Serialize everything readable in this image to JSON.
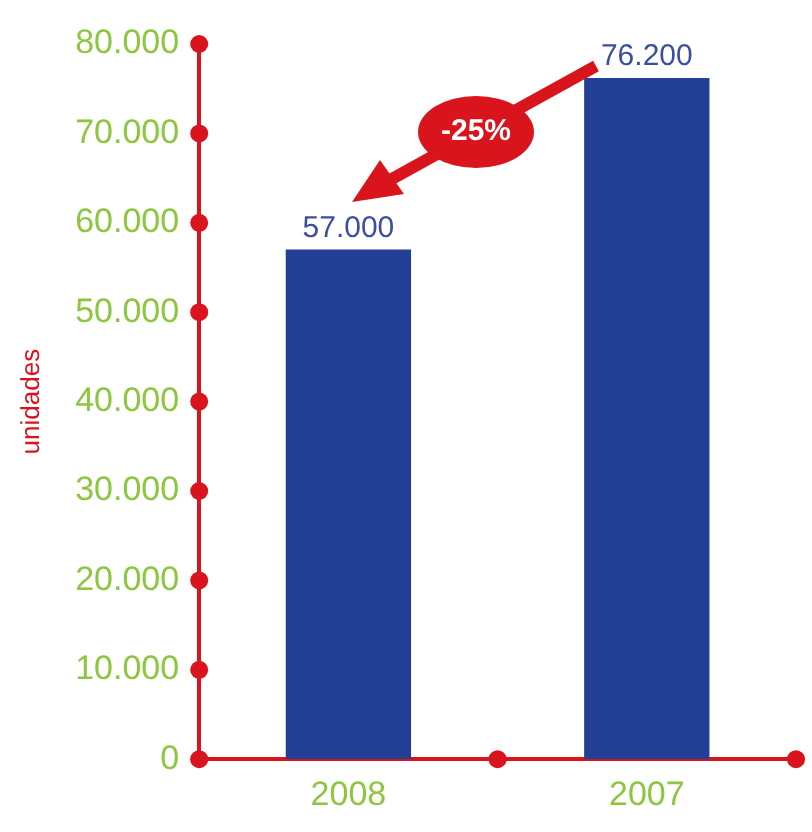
{
  "chart_data": {
    "type": "bar",
    "ylabel": "unidades",
    "categories": [
      "2008",
      "2007"
    ],
    "values": [
      57000,
      76200
    ],
    "color": "#233f95",
    "value_labels": [
      "57.000",
      "76.200"
    ],
    "ylim": [
      0,
      80000
    ],
    "yticks": [
      {
        "value": 0,
        "label": "0"
      },
      {
        "value": 10000,
        "label": "10.000"
      },
      {
        "value": 20000,
        "label": "20.000"
      },
      {
        "value": 30000,
        "label": "30.000"
      },
      {
        "value": 40000,
        "label": "40.000"
      },
      {
        "value": 50000,
        "label": "50.000"
      },
      {
        "value": 60000,
        "label": "60.000"
      },
      {
        "value": 70000,
        "label": "70.000"
      },
      {
        "value": 80000,
        "label": "80.000"
      }
    ],
    "annotations": [
      "-25%"
    ],
    "grid": false,
    "legend": false
  }
}
